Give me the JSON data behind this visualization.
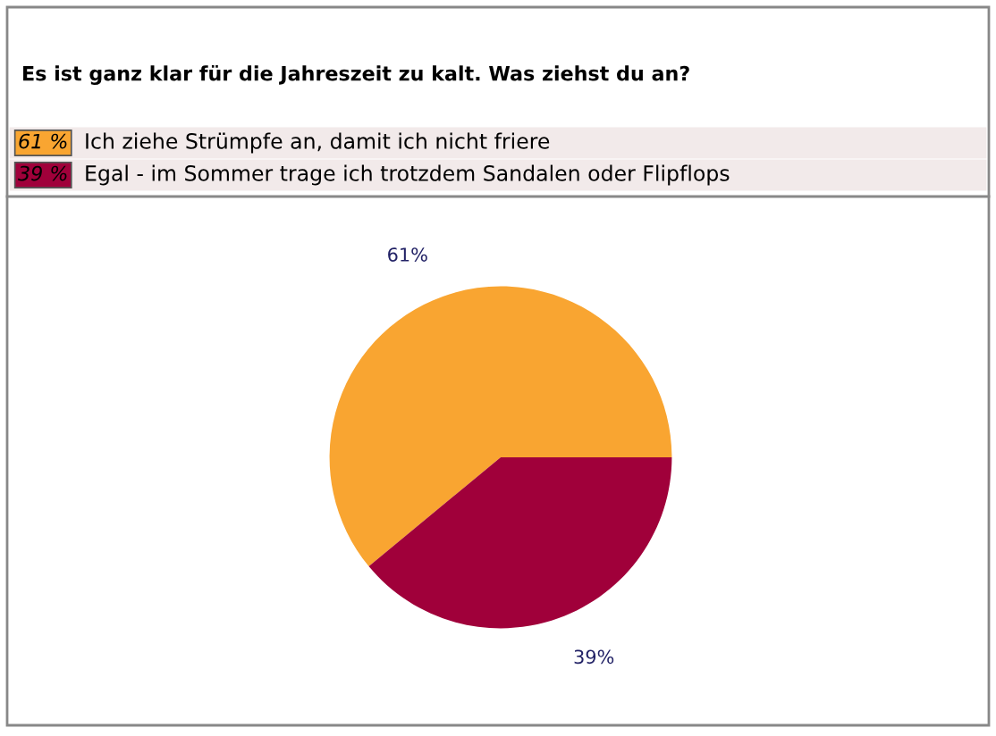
{
  "chart_data": {
    "type": "pie",
    "title": "Es ist ganz klar für die Jahreszeit zu kalt. Was ziehst du an?",
    "categories": [
      "Ich ziehe Strümpfe an, damit ich nicht friere",
      "Egal - im Sommer trage ich trotzdem Sandalen oder Flipflops"
    ],
    "values": [
      61,
      39
    ],
    "colors": [
      "#f9a531",
      "#a0003a"
    ],
    "value_labels": [
      "61%",
      "39%"
    ],
    "annotations": [
      "61 %",
      "39 %"
    ],
    "legend": "top"
  }
}
